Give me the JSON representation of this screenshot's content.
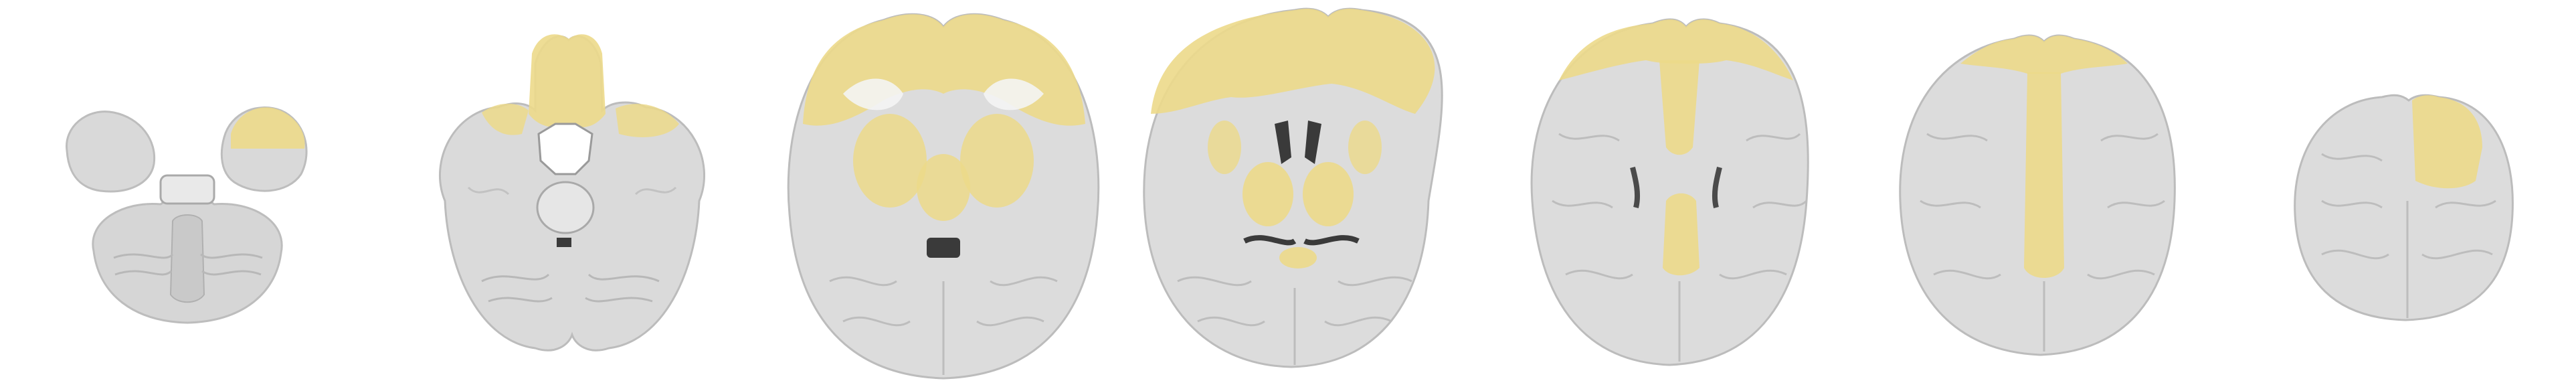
{
  "figure": {
    "view": "axial",
    "slice_count": 7,
    "background_color": "#ffffff",
    "colors": {
      "brain_gray": "#dcdcdc",
      "brain_dark_gray": "#a9a9a9",
      "white_matter": "#f4f4f4",
      "csf_dark": "#3a3a3a",
      "overlay_yellow": "#ecd98a",
      "overlay_yellow_edge": "#e2c96a"
    },
    "overlay": {
      "style": "translucent-yellow-region",
      "regions_shown": [
        "frontal-cortex",
        "deep-gray-matter",
        "medial-parietal",
        "orbitofrontal"
      ]
    },
    "slices": [
      {
        "id": "slice-1",
        "level": "inferior-cerebellum",
        "overlay_present": true
      },
      {
        "id": "slice-2",
        "level": "midbrain-orbitofrontal",
        "overlay_present": true
      },
      {
        "id": "slice-3",
        "level": "basal-ganglia-low",
        "overlay_present": true
      },
      {
        "id": "slice-4",
        "level": "thalamus-ventricles",
        "overlay_present": true
      },
      {
        "id": "slice-5",
        "level": "corona-radiata",
        "overlay_present": true
      },
      {
        "id": "slice-6",
        "level": "centrum-semiovale",
        "overlay_present": true
      },
      {
        "id": "slice-7",
        "level": "vertex",
        "overlay_present": true
      }
    ]
  }
}
